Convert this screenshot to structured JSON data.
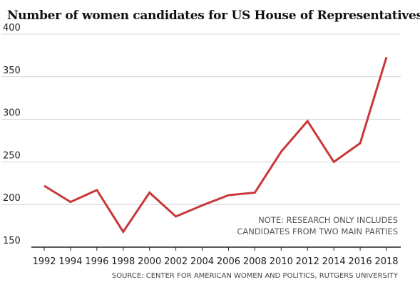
{
  "colors": {
    "line": "#c8373a",
    "grid": "#d4d4d4",
    "axis": "#222222"
  },
  "chart_data": {
    "type": "line",
    "title": "Number of women candidates for US House of Representatives",
    "xlabel": "",
    "ylabel": "",
    "x": [
      "1992",
      "1994",
      "1996",
      "1998",
      "2000",
      "2002",
      "2004",
      "2006",
      "2008",
      "2010",
      "2012",
      "2014",
      "2016",
      "2018"
    ],
    "series": [
      {
        "values": [
          222,
          203,
          217,
          168,
          214,
          186,
          199,
          211,
          214,
          262,
          298,
          250,
          272,
          373
        ]
      }
    ],
    "ylim": [
      150,
      400
    ],
    "yticks": [
      "150",
      "200",
      "250",
      "300",
      "350",
      "400"
    ],
    "grid": true,
    "note_lines": [
      "NOTE: RESEARCH ONLY INCLUDES",
      "CANDIDATES FROM TWO MAIN PARTIES"
    ],
    "source": "SOURCE: CENTER FOR AMERICAN WOMEN AND POLITICS, RUTGERS UNIVERSITY"
  }
}
